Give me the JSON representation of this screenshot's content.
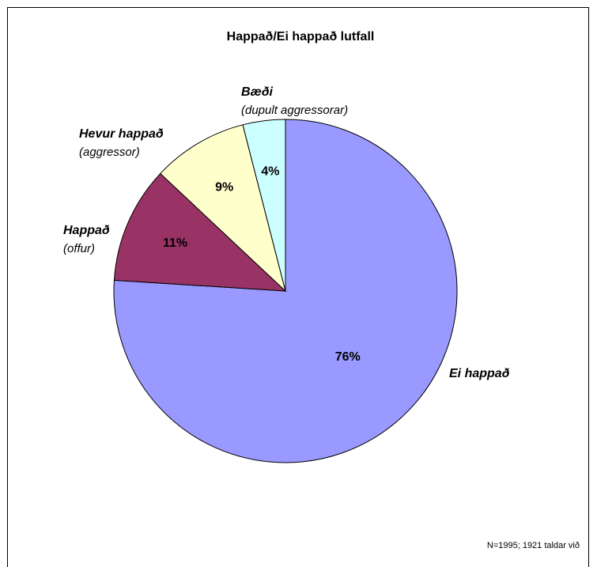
{
  "chart_data": {
    "type": "pie",
    "title": "Happað/Ei happað lutfall",
    "categories": [
      "Ei happað",
      "Happað",
      "Hevur happað",
      "Bæði"
    ],
    "sublabels": [
      null,
      "(offur)",
      "(aggressor)",
      "(dupult aggressorar)"
    ],
    "values": [
      76,
      11,
      9,
      4
    ],
    "value_labels": [
      "76%",
      "11%",
      "9%",
      "4%"
    ],
    "colors": [
      "#9999ff",
      "#993366",
      "#ffffcc",
      "#ccffff"
    ],
    "note": "N=1995; 1921 taldar við"
  }
}
